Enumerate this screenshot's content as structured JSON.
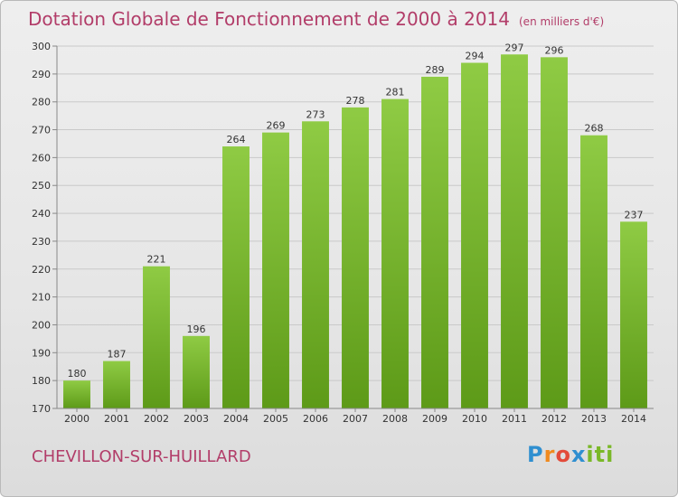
{
  "header": {
    "title": "Dotation Globale de Fonctionnement de 2000 à 2014",
    "subtitle": "(en milliers d'€)"
  },
  "footer": {
    "city": "CHEVILLON-SUR-HUILLARD",
    "logo": [
      "P",
      "r",
      "o",
      "x",
      "i",
      "ti"
    ]
  },
  "colors": {
    "accent": "#b23d69",
    "bar_top": "#8fcb44",
    "bar_bottom": "#5d9a18"
  },
  "chart_data": {
    "type": "bar",
    "categories": [
      "2000",
      "2001",
      "2002",
      "2003",
      "2004",
      "2005",
      "2006",
      "2007",
      "2008",
      "2009",
      "2010",
      "2011",
      "2012",
      "2013",
      "2014"
    ],
    "values": [
      180,
      187,
      221,
      196,
      264,
      269,
      273,
      278,
      281,
      289,
      294,
      297,
      296,
      268,
      237
    ],
    "ylim": [
      170,
      300
    ],
    "yticks": [
      170,
      180,
      190,
      200,
      210,
      220,
      230,
      240,
      250,
      260,
      270,
      280,
      290,
      300
    ],
    "grid": true,
    "legend": "none"
  }
}
